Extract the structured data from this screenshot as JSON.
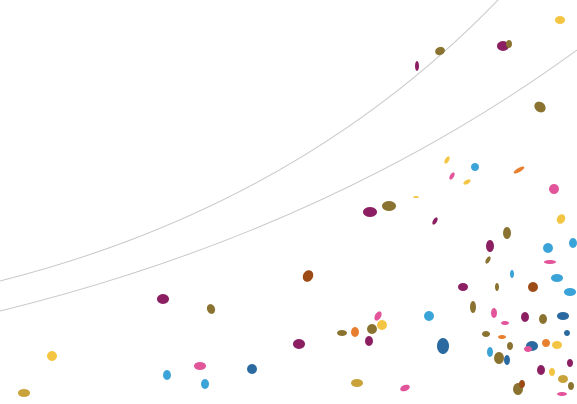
{
  "palette": {
    "background": "#ffffff",
    "arc_line": "#c8c8c8",
    "magenta": "#8b1f62",
    "olive": "#8a7330",
    "blue": "#2a6aa0",
    "light_blue": "#3aa3d8",
    "pink": "#e2559a",
    "yellow": "#f4c542",
    "orange": "#e87f2e",
    "rust": "#9c4a16",
    "mustard": "#c9a33a"
  },
  "decorations": {
    "arc_count": 2,
    "confetti_style": "scattered-ellipses"
  }
}
